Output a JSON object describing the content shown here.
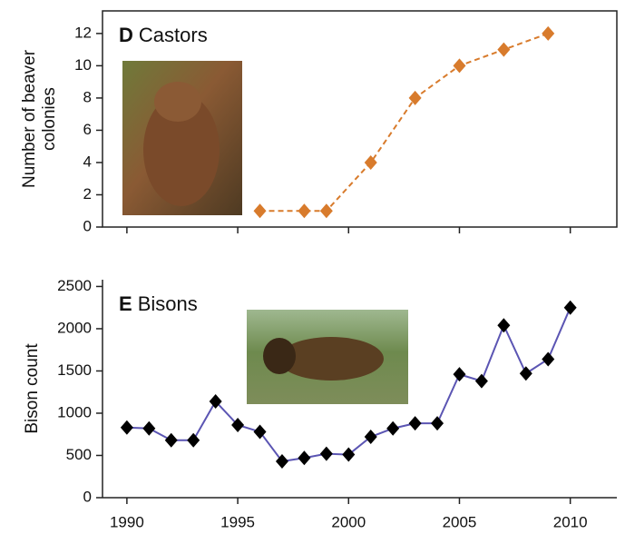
{
  "chart_data": [
    {
      "type": "line",
      "label": "D",
      "title": "Castors",
      "ylabel": [
        "Number of beaver",
        "colonies"
      ],
      "x": [
        1996,
        1998,
        1999,
        2001,
        2003,
        2005,
        2007,
        2009
      ],
      "series": [
        {
          "name": "Beaver colonies",
          "color": "#d87b2c",
          "marker_color": "#d87b2c",
          "line_style": "dashed",
          "values": [
            1,
            1,
            1,
            4,
            8,
            10,
            11,
            12
          ]
        }
      ],
      "xlim": [
        1988.9,
        2012.1
      ],
      "xticks": [
        1990,
        1995,
        2000,
        2005,
        2010
      ],
      "show_xtick_labels": false,
      "ylim": [
        0,
        13.4
      ],
      "yticks": [
        0,
        2,
        4,
        6,
        8,
        10,
        12
      ],
      "box": true
    },
    {
      "type": "line",
      "label": "E",
      "title": "Bisons",
      "ylabel": [
        "Bison count"
      ],
      "x": [
        1990,
        1991,
        1992,
        1993,
        1994,
        1995,
        1996,
        1997,
        1998,
        1999,
        2000,
        2001,
        2002,
        2003,
        2004,
        2005,
        2006,
        2007,
        2008,
        2009,
        2010
      ],
      "series": [
        {
          "name": "Bison count",
          "color": "#5b55b3",
          "marker_color": "#000000",
          "line_style": "solid",
          "values": [
            830,
            820,
            680,
            680,
            1140,
            860,
            780,
            430,
            470,
            520,
            510,
            720,
            820,
            880,
            880,
            1460,
            1380,
            2040,
            1470,
            1640,
            2250
          ]
        }
      ],
      "xlim": [
        1988.9,
        2012.1
      ],
      "xticks": [
        1990,
        1995,
        2000,
        2005,
        2010
      ],
      "show_xtick_labels": true,
      "ylim": [
        0,
        2580
      ],
      "yticks": [
        0,
        500,
        1000,
        1500,
        2000,
        2500
      ],
      "box": false
    }
  ]
}
